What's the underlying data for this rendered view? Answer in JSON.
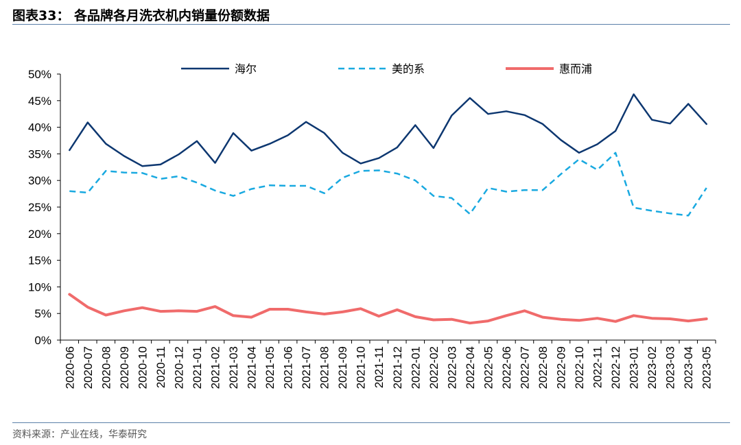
{
  "header": {
    "title": "图表33：  各品牌各月洗衣机内销量份额数据"
  },
  "footer": {
    "source": "资料来源：产业在线，华泰研究"
  },
  "colors": {
    "haier": "#0d3770",
    "midea": "#19a9e0",
    "whirlpool": "#f06b6b",
    "rule": "#5a7fa8"
  },
  "chart_data": {
    "type": "line",
    "title": "",
    "xlabel": "",
    "ylabel": "",
    "ylim": [
      0,
      50
    ],
    "y_ticks": [
      "0%",
      "5%",
      "10%",
      "15%",
      "20%",
      "25%",
      "30%",
      "35%",
      "40%",
      "45%",
      "50%"
    ],
    "legend_position": "top",
    "grid": false,
    "categories": [
      "2020-06",
      "2020-07",
      "2020-08",
      "2020-09",
      "2020-10",
      "2020-11",
      "2020-12",
      "2021-01",
      "2021-02",
      "2021-03",
      "2021-04",
      "2021-05",
      "2021-06",
      "2021-07",
      "2021-08",
      "2021-09",
      "2021-10",
      "2021-11",
      "2021-12",
      "2022-01",
      "2022-02",
      "2022-03",
      "2022-04",
      "2022-05",
      "2022-06",
      "2022-07",
      "2022-08",
      "2022-09",
      "2022-10",
      "2022-11",
      "2022-12",
      "2023-01",
      "2023-02",
      "2023-03",
      "2023-04",
      "2023-05"
    ],
    "series": [
      {
        "name": "海尔",
        "style": "solid",
        "color": "#0d3770",
        "values": [
          35.7,
          40.9,
          36.9,
          34.6,
          32.7,
          33.0,
          34.9,
          37.4,
          33.3,
          38.9,
          35.6,
          36.9,
          38.5,
          41.0,
          38.9,
          35.2,
          33.2,
          34.2,
          36.2,
          40.4,
          36.1,
          42.2,
          45.5,
          42.5,
          43.0,
          42.3,
          40.6,
          37.6,
          35.2,
          36.8,
          39.3,
          46.2,
          41.4,
          40.7,
          44.4,
          40.6
        ]
      },
      {
        "name": "美的系",
        "style": "dashed",
        "color": "#19a9e0",
        "values": [
          28.0,
          27.7,
          31.8,
          31.5,
          31.4,
          30.3,
          30.8,
          29.6,
          28.1,
          27.1,
          28.4,
          29.1,
          29.0,
          29.0,
          27.6,
          30.5,
          31.8,
          31.9,
          31.3,
          30.0,
          27.1,
          26.7,
          23.7,
          28.6,
          27.9,
          28.2,
          28.2,
          31.2,
          34.0,
          32.0,
          35.2,
          24.9,
          24.3,
          23.8,
          23.4,
          28.6
        ]
      },
      {
        "name": "惠而浦",
        "style": "solid",
        "color": "#f06b6b",
        "values": [
          8.6,
          6.2,
          4.7,
          5.5,
          6.1,
          5.4,
          5.5,
          5.4,
          6.3,
          4.6,
          4.3,
          5.8,
          5.8,
          5.3,
          4.9,
          5.3,
          5.9,
          4.5,
          5.7,
          4.4,
          3.8,
          3.9,
          3.2,
          3.6,
          4.6,
          5.5,
          4.3,
          3.9,
          3.7,
          4.1,
          3.5,
          4.6,
          4.1,
          4.0,
          3.6,
          4.0
        ]
      }
    ]
  }
}
